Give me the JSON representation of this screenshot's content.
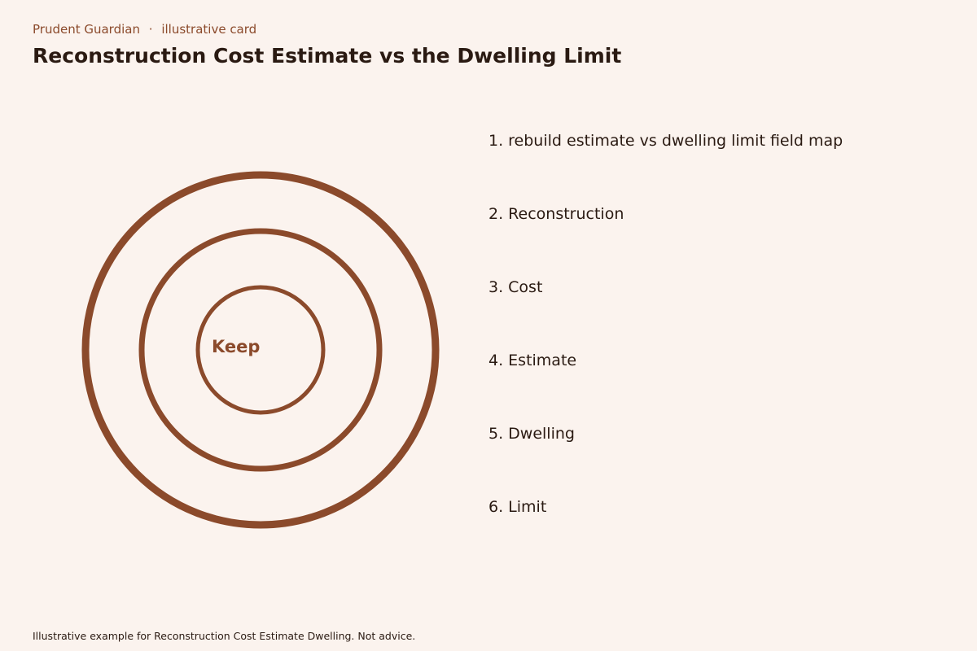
{
  "header": {
    "brand": "Prudent Guardian",
    "separator": "·",
    "tag": "illustrative card",
    "title": "Reconstruction Cost Estimate vs the Dwelling Limit"
  },
  "diagram": {
    "center_label": "Keep",
    "items": [
      "1. rebuild estimate vs dwelling limit field map",
      "2. Reconstruction",
      "3. Cost",
      "4. Estimate",
      "5. Dwelling",
      "6. Limit"
    ]
  },
  "footer": "Illustrative example for Reconstruction Cost Estimate Dwelling. Not advice."
}
